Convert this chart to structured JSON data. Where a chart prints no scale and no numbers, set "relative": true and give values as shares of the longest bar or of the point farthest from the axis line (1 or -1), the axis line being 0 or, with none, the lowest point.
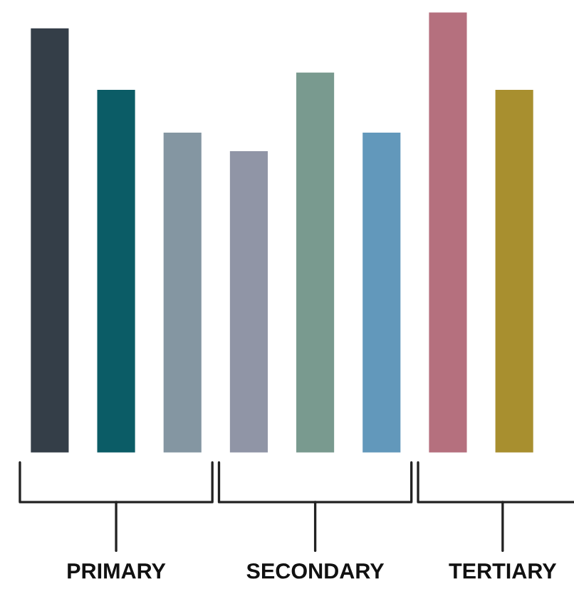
{
  "chart_data": {
    "type": "bar",
    "relative": true,
    "categories": [
      null,
      null,
      null,
      null,
      null,
      null,
      null,
      null
    ],
    "values": [
      0.964,
      0.825,
      0.728,
      0.686,
      0.864,
      0.728,
      1.0,
      0.825
    ],
    "colors": [
      "#343e48",
      "#0b5c66",
      "#8496a2",
      "#9095a6",
      "#799a8f",
      "#6298bb",
      "#b5707e",
      "#a88f2f"
    ],
    "annotations": [
      "PRIMARY",
      "SECONDARY",
      "TERTIARY"
    ],
    "grid": false,
    "legend": false
  }
}
